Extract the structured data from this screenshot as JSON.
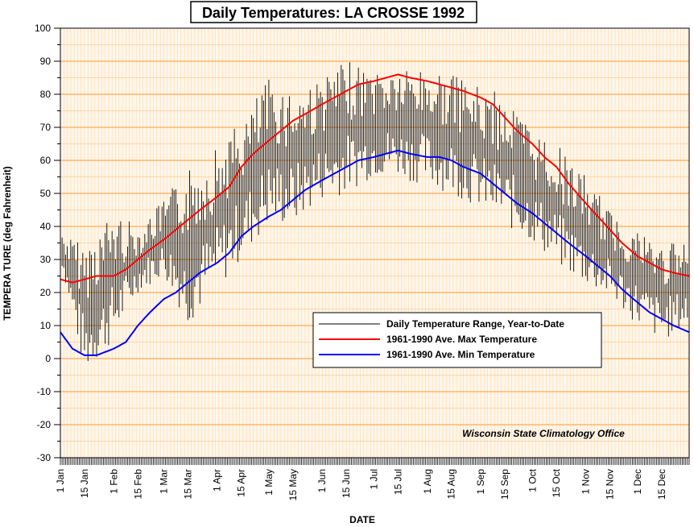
{
  "chart_data": {
    "type": "line",
    "title": "Daily Temperatures: LA CROSSE 1992",
    "xlabel": "DATE",
    "ylabel": "TEMPERA TURE (deg Fahrenheit)",
    "ylim": [
      -30,
      100
    ],
    "yticks": [
      -30,
      -20,
      -10,
      0,
      10,
      20,
      30,
      40,
      50,
      60,
      70,
      80,
      90,
      100
    ],
    "xlim_day_of_year": [
      1,
      366
    ],
    "x_tick_labels": [
      {
        "label": "1 Jan",
        "day": 1
      },
      {
        "label": "15 Jan",
        "day": 15
      },
      {
        "label": "1 Feb",
        "day": 32
      },
      {
        "label": "15 Feb",
        "day": 46
      },
      {
        "label": "1 Mar",
        "day": 61
      },
      {
        "label": "15 Mar",
        "day": 75
      },
      {
        "label": "1 Apr",
        "day": 92
      },
      {
        "label": "15 Apr",
        "day": 106
      },
      {
        "label": "1 May",
        "day": 122
      },
      {
        "label": "15 May",
        "day": 136
      },
      {
        "label": "1 Jun",
        "day": 153
      },
      {
        "label": "15 Jun",
        "day": 167
      },
      {
        "label": "1 Jul",
        "day": 183
      },
      {
        "label": "15 Jul",
        "day": 197
      },
      {
        "label": "1 Aug",
        "day": 214
      },
      {
        "label": "15 Aug",
        "day": 228
      },
      {
        "label": "1 Sep",
        "day": 245
      },
      {
        "label": "15 Sep",
        "day": 259
      },
      {
        "label": "1 Oct",
        "day": 275
      },
      {
        "label": "15 Oct",
        "day": 289
      },
      {
        "label": "1 Nov",
        "day": 306
      },
      {
        "label": "15 Nov",
        "day": 320
      },
      {
        "label": "1 Dec",
        "day": 336
      },
      {
        "label": "15 Dec",
        "day": 350
      }
    ],
    "grid": true,
    "legend_position": "lower-right",
    "annotation": "Wisconsin State Climatology Office",
    "colors": {
      "range": "#000000",
      "max": "#ff0000",
      "min": "#0000ff",
      "grid_major": "#ff9933",
      "grid_minor": "#ffd9a8"
    },
    "series": [
      {
        "name": "Daily Temperature Range, Year-to-Date",
        "kind": "range",
        "min_envelope": [
          [
            1,
            30
          ],
          [
            15,
            -5
          ],
          [
            32,
            5
          ],
          [
            46,
            20
          ],
          [
            61,
            25
          ],
          [
            75,
            10
          ],
          [
            92,
            20
          ],
          [
            106,
            30
          ],
          [
            122,
            40
          ],
          [
            136,
            40
          ],
          [
            153,
            48
          ],
          [
            167,
            50
          ],
          [
            183,
            55
          ],
          [
            197,
            55
          ],
          [
            214,
            52
          ],
          [
            228,
            50
          ],
          [
            245,
            45
          ],
          [
            259,
            40
          ],
          [
            275,
            35
          ],
          [
            289,
            28
          ],
          [
            306,
            22
          ],
          [
            320,
            18
          ],
          [
            336,
            10
          ],
          [
            350,
            5
          ],
          [
            366,
            10
          ]
        ],
        "max_envelope": [
          [
            1,
            38
          ],
          [
            15,
            35
          ],
          [
            32,
            45
          ],
          [
            46,
            40
          ],
          [
            61,
            48
          ],
          [
            75,
            58
          ],
          [
            92,
            65
          ],
          [
            106,
            72
          ],
          [
            122,
            85
          ],
          [
            136,
            82
          ],
          [
            153,
            85
          ],
          [
            167,
            90
          ],
          [
            183,
            88
          ],
          [
            197,
            88
          ],
          [
            214,
            88
          ],
          [
            228,
            86
          ],
          [
            245,
            82
          ],
          [
            259,
            80
          ],
          [
            275,
            70
          ],
          [
            289,
            65
          ],
          [
            306,
            55
          ],
          [
            320,
            45
          ],
          [
            336,
            40
          ],
          [
            350,
            35
          ],
          [
            366,
            35
          ]
        ]
      },
      {
        "name": "1961-1990 Ave. Max Temperature",
        "kind": "line",
        "points": [
          [
            1,
            24
          ],
          [
            8,
            23
          ],
          [
            15,
            24
          ],
          [
            22,
            25
          ],
          [
            32,
            25
          ],
          [
            39,
            27
          ],
          [
            46,
            30
          ],
          [
            53,
            33
          ],
          [
            61,
            36
          ],
          [
            68,
            39
          ],
          [
            75,
            42
          ],
          [
            82,
            45
          ],
          [
            92,
            49
          ],
          [
            99,
            52
          ],
          [
            106,
            58
          ],
          [
            113,
            62
          ],
          [
            122,
            66
          ],
          [
            129,
            69
          ],
          [
            136,
            72
          ],
          [
            143,
            74
          ],
          [
            153,
            77
          ],
          [
            160,
            79
          ],
          [
            167,
            81
          ],
          [
            174,
            83
          ],
          [
            183,
            84
          ],
          [
            190,
            85
          ],
          [
            197,
            86
          ],
          [
            204,
            85
          ],
          [
            214,
            84
          ],
          [
            221,
            83
          ],
          [
            228,
            82
          ],
          [
            235,
            81
          ],
          [
            245,
            79
          ],
          [
            252,
            77
          ],
          [
            259,
            73
          ],
          [
            266,
            69
          ],
          [
            275,
            65
          ],
          [
            282,
            61
          ],
          [
            289,
            58
          ],
          [
            296,
            53
          ],
          [
            306,
            47
          ],
          [
            313,
            43
          ],
          [
            320,
            39
          ],
          [
            327,
            35
          ],
          [
            336,
            31
          ],
          [
            343,
            29
          ],
          [
            350,
            27
          ],
          [
            357,
            26
          ],
          [
            366,
            25
          ]
        ]
      },
      {
        "name": "1961-1990 Ave. Min Temperature",
        "kind": "line",
        "points": [
          [
            1,
            8
          ],
          [
            8,
            3
          ],
          [
            15,
            1
          ],
          [
            22,
            1
          ],
          [
            32,
            3
          ],
          [
            39,
            5
          ],
          [
            46,
            10
          ],
          [
            53,
            14
          ],
          [
            61,
            18
          ],
          [
            68,
            20
          ],
          [
            75,
            23
          ],
          [
            82,
            26
          ],
          [
            92,
            29
          ],
          [
            99,
            32
          ],
          [
            106,
            37
          ],
          [
            113,
            40
          ],
          [
            122,
            43
          ],
          [
            129,
            45
          ],
          [
            136,
            48
          ],
          [
            143,
            51
          ],
          [
            153,
            54
          ],
          [
            160,
            56
          ],
          [
            167,
            58
          ],
          [
            174,
            60
          ],
          [
            183,
            61
          ],
          [
            190,
            62
          ],
          [
            197,
            63
          ],
          [
            204,
            62
          ],
          [
            214,
            61
          ],
          [
            221,
            61
          ],
          [
            228,
            60
          ],
          [
            235,
            58
          ],
          [
            245,
            56
          ],
          [
            252,
            53
          ],
          [
            259,
            50
          ],
          [
            266,
            47
          ],
          [
            275,
            44
          ],
          [
            282,
            41
          ],
          [
            289,
            38
          ],
          [
            296,
            35
          ],
          [
            306,
            31
          ],
          [
            313,
            28
          ],
          [
            320,
            25
          ],
          [
            327,
            21
          ],
          [
            336,
            17
          ],
          [
            343,
            14
          ],
          [
            350,
            12
          ],
          [
            357,
            10
          ],
          [
            366,
            8
          ]
        ]
      }
    ]
  }
}
